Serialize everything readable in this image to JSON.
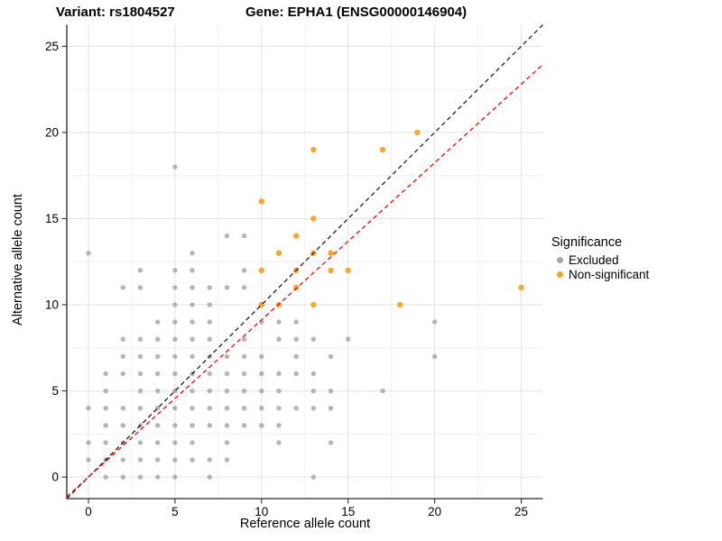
{
  "header": {
    "variant_title": "Variant: rs1804527",
    "gene_title": "Gene: EPHA1 (ENSG00000146904)"
  },
  "axes": {
    "x_title": "Reference allele count",
    "y_title": "Alternative allele count",
    "x_ticks": [
      0,
      5,
      10,
      15,
      20,
      25
    ],
    "y_ticks": [
      0,
      5,
      10,
      15,
      20,
      25
    ],
    "x_range": [
      -1.25,
      26.25
    ],
    "y_range": [
      -1.25,
      26.25
    ]
  },
  "legend": {
    "title": "Significance",
    "items": [
      {
        "label": "Excluded",
        "color": "#a6a6a6"
      },
      {
        "label": "Non-significant",
        "color": "#f9a126"
      }
    ]
  },
  "colors": {
    "excluded_point": "#999999",
    "nonsignificant_point": "#f9a126",
    "identity_line": "#1c1c1c",
    "fit_line": "#fb0000",
    "major_grid": "#e2e2e2",
    "minor_grid": "#f0f0f0",
    "spine": "#4a4a4a"
  },
  "chart_data": {
    "type": "scatter",
    "title": "Variant: rs1804527 | Gene: EPHA1 (ENSG00000146904)",
    "xlabel": "Reference allele count",
    "ylabel": "Alternative allele count",
    "xlim": [
      -1.25,
      26.25
    ],
    "ylim": [
      -1.25,
      26.25
    ],
    "grid": {
      "major_every": 5,
      "minor_every": 2.5,
      "grid_on": true
    },
    "legend_position": "right",
    "series": [
      {
        "name": "Excluded",
        "color": "#999999",
        "opacity": 0.72,
        "radius": 2.7,
        "points": [
          [
            1,
            0
          ],
          [
            2,
            0
          ],
          [
            3,
            0
          ],
          [
            4,
            0
          ],
          [
            5,
            0
          ],
          [
            7,
            0
          ],
          [
            13,
            0
          ],
          [
            0,
            1
          ],
          [
            1,
            1
          ],
          [
            2,
            1
          ],
          [
            3,
            1
          ],
          [
            4,
            1
          ],
          [
            5,
            1
          ],
          [
            6,
            1
          ],
          [
            7,
            1
          ],
          [
            8,
            1
          ],
          [
            0,
            2
          ],
          [
            1,
            2
          ],
          [
            2,
            2
          ],
          [
            3,
            2
          ],
          [
            4,
            2
          ],
          [
            5,
            2
          ],
          [
            6,
            2
          ],
          [
            8,
            2
          ],
          [
            11,
            2
          ],
          [
            14,
            2
          ],
          [
            1,
            3
          ],
          [
            2,
            3
          ],
          [
            3,
            3
          ],
          [
            4,
            3
          ],
          [
            5,
            3
          ],
          [
            6,
            3
          ],
          [
            7,
            3
          ],
          [
            8,
            3
          ],
          [
            9,
            3
          ],
          [
            10,
            3
          ],
          [
            11,
            3
          ],
          [
            0,
            4
          ],
          [
            1,
            4
          ],
          [
            2,
            4
          ],
          [
            3,
            4
          ],
          [
            4,
            4
          ],
          [
            5,
            4
          ],
          [
            6,
            4
          ],
          [
            7,
            4
          ],
          [
            8,
            4
          ],
          [
            9,
            4
          ],
          [
            10,
            4
          ],
          [
            11,
            4
          ],
          [
            12,
            4
          ],
          [
            13,
            4
          ],
          [
            14,
            4
          ],
          [
            1,
            5
          ],
          [
            3,
            5
          ],
          [
            4,
            5
          ],
          [
            5,
            5
          ],
          [
            6,
            5
          ],
          [
            7,
            5
          ],
          [
            8,
            5
          ],
          [
            9,
            5
          ],
          [
            10,
            5
          ],
          [
            11,
            5
          ],
          [
            13,
            5
          ],
          [
            14,
            5
          ],
          [
            17,
            5
          ],
          [
            1,
            6
          ],
          [
            2,
            6
          ],
          [
            3,
            6
          ],
          [
            4,
            6
          ],
          [
            5,
            6
          ],
          [
            6,
            6
          ],
          [
            7,
            6
          ],
          [
            8,
            6
          ],
          [
            9,
            6
          ],
          [
            10,
            6
          ],
          [
            11,
            6
          ],
          [
            12,
            6
          ],
          [
            13,
            6
          ],
          [
            2,
            7
          ],
          [
            3,
            7
          ],
          [
            4,
            7
          ],
          [
            5,
            7
          ],
          [
            6,
            7
          ],
          [
            7,
            7
          ],
          [
            8,
            7
          ],
          [
            9,
            7
          ],
          [
            10,
            7
          ],
          [
            12,
            7
          ],
          [
            14,
            7
          ],
          [
            20,
            7
          ],
          [
            2,
            8
          ],
          [
            3,
            8
          ],
          [
            4,
            8
          ],
          [
            5,
            8
          ],
          [
            6,
            8
          ],
          [
            7,
            8
          ],
          [
            9,
            8
          ],
          [
            11,
            8
          ],
          [
            12,
            8
          ],
          [
            13,
            8
          ],
          [
            15,
            8
          ],
          [
            4,
            9
          ],
          [
            5,
            9
          ],
          [
            6,
            9
          ],
          [
            7,
            9
          ],
          [
            10,
            9
          ],
          [
            11,
            9
          ],
          [
            12,
            9
          ],
          [
            20,
            9
          ],
          [
            5,
            10
          ],
          [
            6,
            10
          ],
          [
            7,
            10
          ],
          [
            2,
            11
          ],
          [
            3,
            11
          ],
          [
            5,
            11
          ],
          [
            6,
            11
          ],
          [
            7,
            11
          ],
          [
            8,
            11
          ],
          [
            9,
            11
          ],
          [
            3,
            12
          ],
          [
            5,
            12
          ],
          [
            6,
            12
          ],
          [
            9,
            12
          ],
          [
            0,
            13
          ],
          [
            6,
            13
          ],
          [
            8,
            14
          ],
          [
            9,
            14
          ],
          [
            5,
            18
          ]
        ]
      },
      {
        "name": "Non-significant",
        "color": "#f9a126",
        "opacity": 0.95,
        "radius": 3.2,
        "points": [
          [
            10,
            10
          ],
          [
            11,
            10
          ],
          [
            13,
            10
          ],
          [
            18,
            10
          ],
          [
            12,
            11
          ],
          [
            25,
            11
          ],
          [
            10,
            12
          ],
          [
            12,
            12
          ],
          [
            14,
            12
          ],
          [
            15,
            12
          ],
          [
            11,
            13
          ],
          [
            13,
            13
          ],
          [
            14,
            13
          ],
          [
            12,
            14
          ],
          [
            13,
            15
          ],
          [
            10,
            16
          ],
          [
            13,
            19
          ],
          [
            17,
            19
          ],
          [
            19,
            20
          ]
        ]
      }
    ],
    "lines": [
      {
        "name": "identity-line",
        "slope": 1.0,
        "intercept": 0,
        "style": "dashed",
        "color": "#1c1c1c"
      },
      {
        "name": "fit-line",
        "slope": 0.912,
        "intercept": 0,
        "style": "dashed",
        "color": "#fb0000"
      }
    ]
  }
}
